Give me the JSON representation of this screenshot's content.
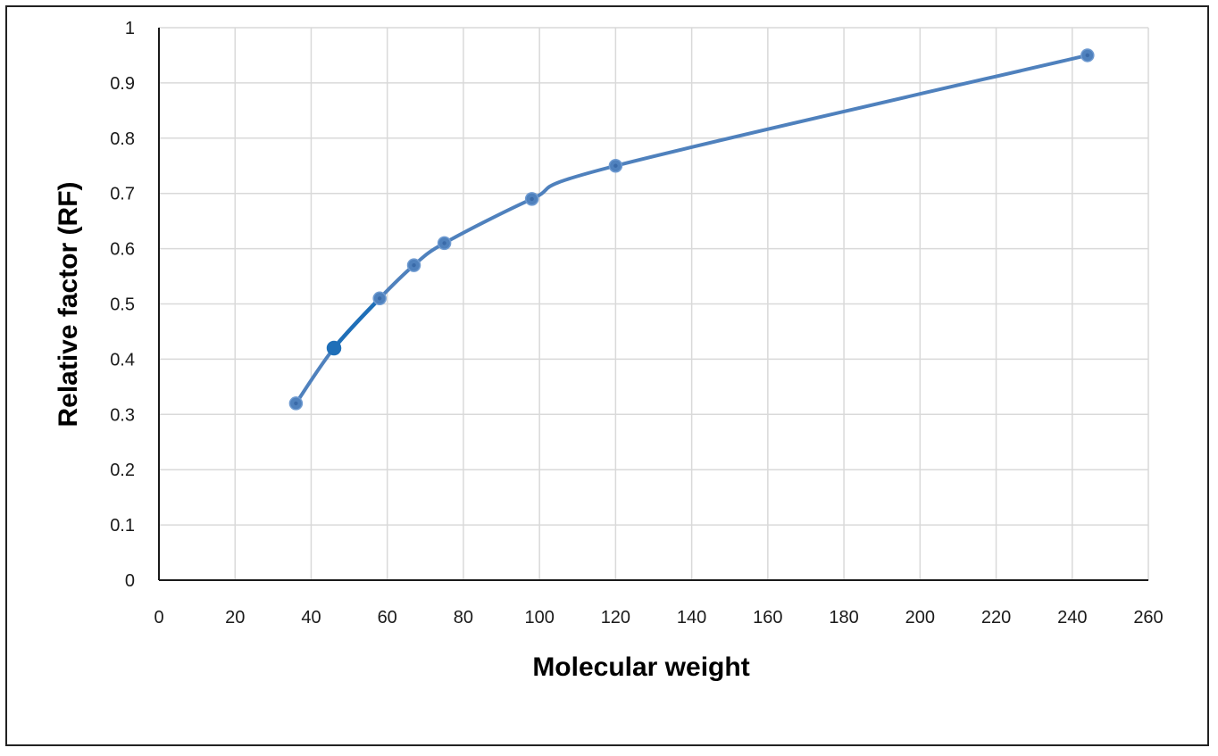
{
  "chart_data": {
    "type": "line",
    "title": "",
    "xlabel": "Molecular weight",
    "ylabel": "Relative factor (RF)",
    "xlim": [
      0,
      260
    ],
    "ylim": [
      0,
      1
    ],
    "x_ticks": [
      "0",
      "20",
      "40",
      "60",
      "80",
      "100",
      "120",
      "140",
      "160",
      "180",
      "200",
      "220",
      "240",
      "260"
    ],
    "y_ticks": [
      "0",
      "0.1",
      "0.2",
      "0.3",
      "0.4",
      "0.5",
      "0.6",
      "0.7",
      "0.8",
      "0.9",
      "1"
    ],
    "grid": true,
    "legend": "none",
    "smooth": true,
    "series": [
      {
        "color": "#4f81bd",
        "x": [
          36,
          46,
          58,
          67,
          75,
          98,
          120,
          244
        ],
        "y": [
          0.32,
          0.42,
          0.51,
          0.57,
          0.61,
          0.69,
          0.75,
          0.95
        ]
      }
    ],
    "highlight": {
      "color": "#1f6fb8",
      "point_index": 1,
      "segment": [
        1,
        2
      ]
    }
  }
}
